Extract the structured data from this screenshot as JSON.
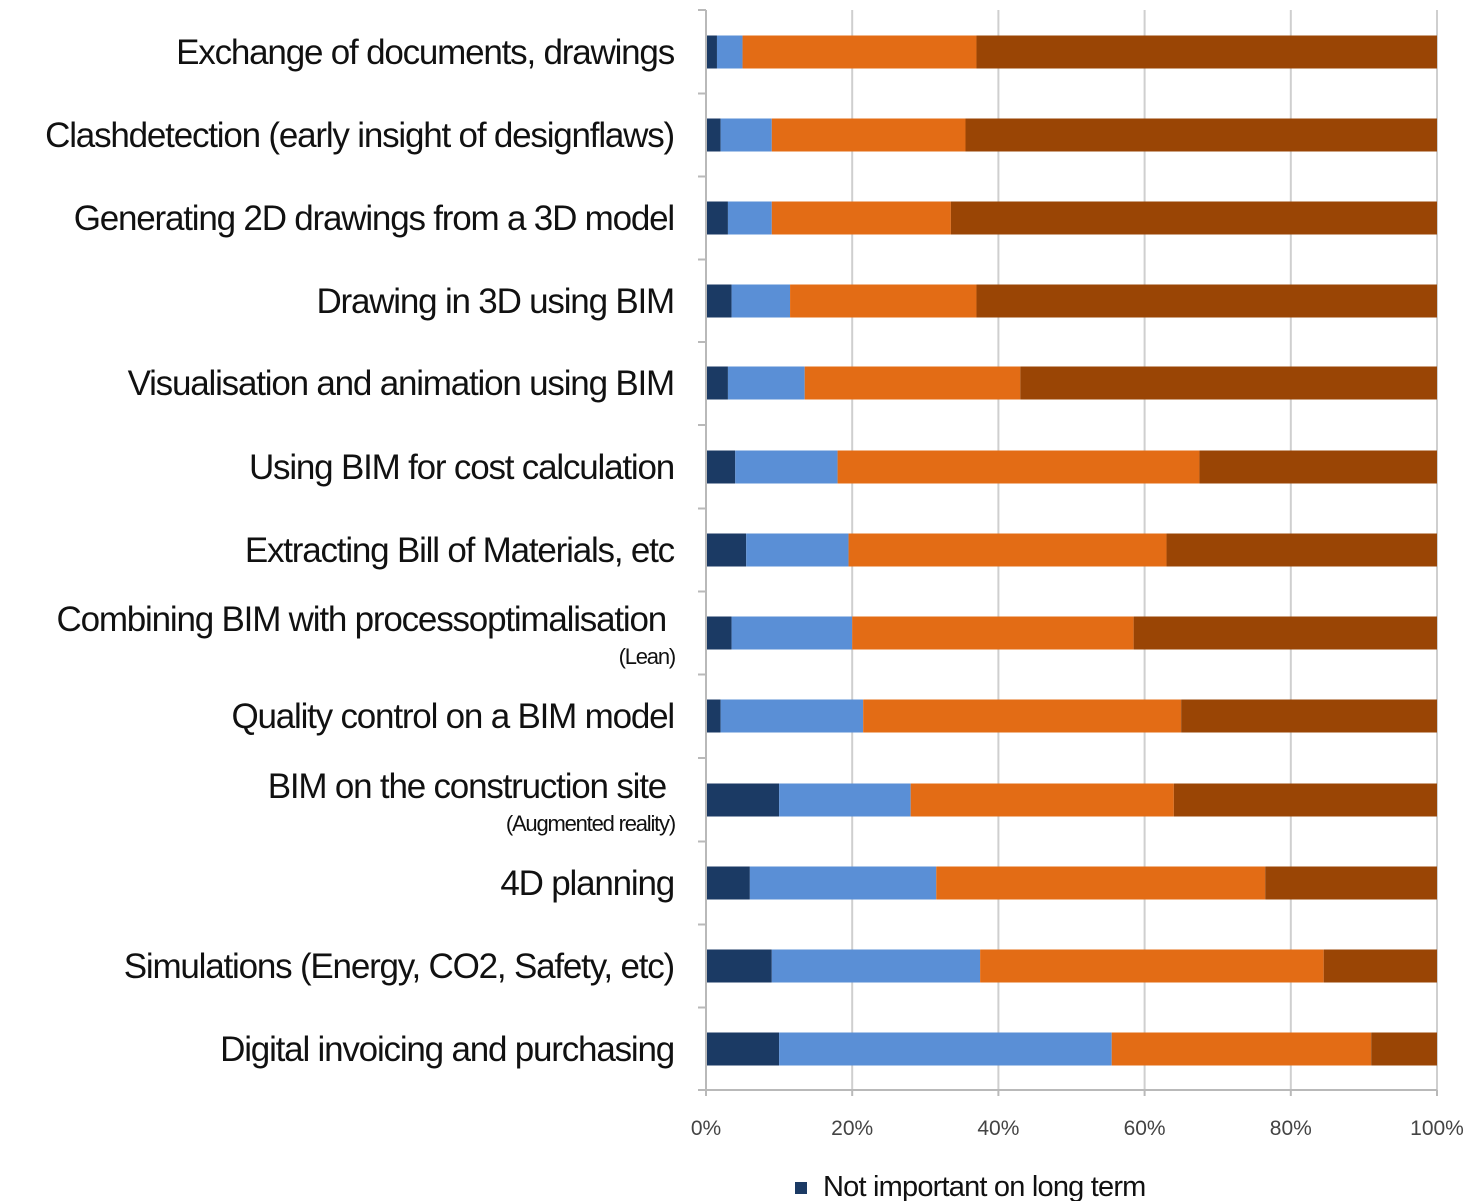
{
  "chart_data": {
    "type": "bar",
    "orientation": "horizontal",
    "stacked": true,
    "percent_stacked": true,
    "categories": [
      {
        "label": "Exchange of documents, drawings",
        "sublabel": ""
      },
      {
        "label": "Clashdetection (early insight of designflaws)",
        "sublabel": ""
      },
      {
        "label": "Generating 2D drawings from a 3D model",
        "sublabel": ""
      },
      {
        "label": "Drawing in 3D using BIM",
        "sublabel": ""
      },
      {
        "label": "Visualisation and animation using BIM",
        "sublabel": ""
      },
      {
        "label": "Using BIM for cost calculation",
        "sublabel": ""
      },
      {
        "label": "Extracting Bill of Materials, etc",
        "sublabel": ""
      },
      {
        "label": "Combining BIM with processoptimalisation",
        "sublabel": "(Lean)"
      },
      {
        "label": "Quality control on a BIM model",
        "sublabel": ""
      },
      {
        "label": "BIM on the construction site",
        "sublabel": "(Augmented reality)"
      },
      {
        "label": "4D planning",
        "sublabel": ""
      },
      {
        "label": "Simulations (Energy, CO2, Safety, etc)",
        "sublabel": ""
      },
      {
        "label": "Digital invoicing and purchasing",
        "sublabel": ""
      }
    ],
    "series": [
      {
        "name": "Not important on long term",
        "color": "#1b3a64",
        "values": [
          1.5,
          2,
          3,
          3.5,
          3,
          4,
          5.5,
          3.5,
          2,
          10,
          6,
          9,
          10
        ]
      },
      {
        "name": "",
        "color": "#5a8fd6",
        "values": [
          3.5,
          7,
          6,
          8,
          10.5,
          14,
          14,
          16.5,
          19.5,
          18,
          25.5,
          28.5,
          45.5
        ]
      },
      {
        "name": "",
        "color": "#e36c15",
        "values": [
          32,
          26.5,
          24.5,
          25.5,
          29.5,
          49.5,
          43.5,
          38.5,
          43.5,
          36,
          45,
          47,
          35.5
        ]
      },
      {
        "name": "",
        "color": "#9a4505",
        "values": [
          63,
          64.5,
          66.5,
          63,
          57,
          32.5,
          37,
          41.5,
          35,
          36,
          23.5,
          15.5,
          9
        ]
      }
    ],
    "x_ticks": [
      "0%",
      "20%",
      "40%",
      "60%",
      "80%",
      "100%"
    ],
    "xlim": [
      0,
      100
    ],
    "grid": true,
    "legend_position": "bottom",
    "title": "",
    "xlabel": "",
    "ylabel": ""
  }
}
